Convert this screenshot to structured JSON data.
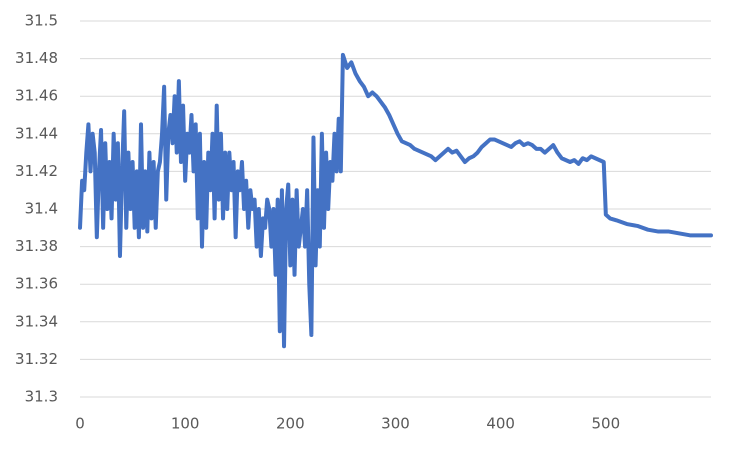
{
  "chart_data": {
    "type": "line",
    "color": "#4472c4",
    "grid": true,
    "xlim": [
      0,
      600
    ],
    "xticks": [
      0,
      100,
      200,
      300,
      400,
      500
    ],
    "ylim": [
      31.3,
      31.5
    ],
    "yticks": [
      31.3,
      31.32,
      31.34,
      31.36,
      31.38,
      31.4,
      31.42,
      31.44,
      31.46,
      31.48,
      31.5
    ],
    "x": [
      0,
      2,
      4,
      6,
      8,
      10,
      12,
      14,
      16,
      18,
      20,
      22,
      24,
      26,
      28,
      30,
      32,
      34,
      36,
      38,
      40,
      42,
      44,
      46,
      48,
      50,
      52,
      54,
      56,
      58,
      60,
      62,
      64,
      66,
      68,
      70,
      72,
      74,
      76,
      78,
      80,
      82,
      84,
      86,
      88,
      90,
      92,
      94,
      96,
      98,
      100,
      102,
      104,
      106,
      108,
      110,
      112,
      114,
      116,
      118,
      120,
      122,
      124,
      126,
      128,
      130,
      132,
      134,
      136,
      138,
      140,
      142,
      144,
      146,
      148,
      150,
      152,
      154,
      156,
      158,
      160,
      162,
      164,
      166,
      168,
      170,
      172,
      174,
      176,
      178,
      180,
      182,
      184,
      186,
      188,
      190,
      192,
      194,
      196,
      198,
      200,
      202,
      204,
      206,
      208,
      210,
      212,
      214,
      216,
      218,
      220,
      222,
      224,
      226,
      228,
      230,
      232,
      234,
      236,
      238,
      240,
      242,
      244,
      246,
      248,
      250,
      254,
      258,
      262,
      266,
      270,
      274,
      278,
      282,
      286,
      290,
      294,
      298,
      302,
      306,
      310,
      314,
      318,
      322,
      326,
      330,
      334,
      338,
      342,
      346,
      350,
      354,
      358,
      362,
      366,
      370,
      374,
      378,
      382,
      386,
      390,
      394,
      398,
      402,
      406,
      410,
      414,
      418,
      422,
      426,
      430,
      434,
      438,
      442,
      446,
      450,
      454,
      458,
      462,
      466,
      470,
      474,
      478,
      482,
      486,
      490,
      494,
      498,
      500,
      504,
      510,
      520,
      530,
      540,
      550,
      560,
      570,
      580,
      590,
      600
    ],
    "values": [
      31.39,
      31.415,
      31.41,
      31.43,
      31.445,
      31.42,
      31.44,
      31.43,
      31.385,
      31.42,
      31.442,
      31.39,
      31.435,
      31.4,
      31.425,
      31.395,
      31.44,
      31.405,
      31.435,
      31.375,
      31.42,
      31.452,
      31.39,
      31.43,
      31.4,
      31.425,
      31.39,
      31.42,
      31.385,
      31.445,
      31.39,
      31.42,
      31.388,
      31.43,
      31.395,
      31.425,
      31.39,
      31.42,
      31.425,
      31.44,
      31.465,
      31.405,
      31.44,
      31.45,
      31.435,
      31.46,
      31.43,
      31.468,
      31.425,
      31.455,
      31.415,
      31.44,
      31.43,
      31.45,
      31.42,
      31.445,
      31.395,
      31.44,
      31.38,
      31.425,
      31.39,
      31.43,
      31.41,
      31.44,
      31.395,
      31.455,
      31.405,
      31.44,
      31.395,
      31.43,
      31.4,
      31.43,
      31.41,
      31.425,
      31.385,
      31.42,
      31.41,
      31.425,
      31.4,
      31.415,
      31.39,
      31.41,
      31.4,
      31.405,
      31.38,
      31.4,
      31.375,
      31.395,
      31.39,
      31.405,
      31.4,
      31.38,
      31.4,
      31.365,
      31.405,
      31.335,
      31.41,
      31.327,
      31.4,
      31.413,
      31.37,
      31.405,
      31.365,
      31.41,
      31.38,
      31.39,
      31.4,
      31.38,
      31.41,
      31.36,
      31.333,
      31.438,
      31.37,
      31.41,
      31.38,
      31.44,
      31.39,
      31.43,
      31.4,
      31.425,
      31.415,
      31.44,
      31.42,
      31.448,
      31.42,
      31.482,
      31.475,
      31.478,
      31.472,
      31.468,
      31.465,
      31.46,
      31.462,
      31.46,
      31.457,
      31.454,
      31.45,
      31.445,
      31.44,
      31.436,
      31.435,
      31.434,
      31.432,
      31.431,
      31.43,
      31.429,
      31.428,
      31.426,
      31.428,
      31.43,
      31.432,
      31.43,
      31.431,
      31.428,
      31.425,
      31.427,
      31.428,
      31.43,
      31.433,
      31.435,
      31.437,
      31.437,
      31.436,
      31.435,
      31.434,
      31.433,
      31.435,
      31.436,
      31.434,
      31.435,
      31.434,
      31.432,
      31.432,
      31.43,
      31.432,
      31.434,
      31.43,
      31.427,
      31.426,
      31.425,
      31.426,
      31.424,
      31.427,
      31.426,
      31.428,
      31.427,
      31.426,
      31.425,
      31.397,
      31.395,
      31.394,
      31.392,
      31.391,
      31.389,
      31.388,
      31.388,
      31.387,
      31.386,
      31.386,
      31.386
    ]
  }
}
